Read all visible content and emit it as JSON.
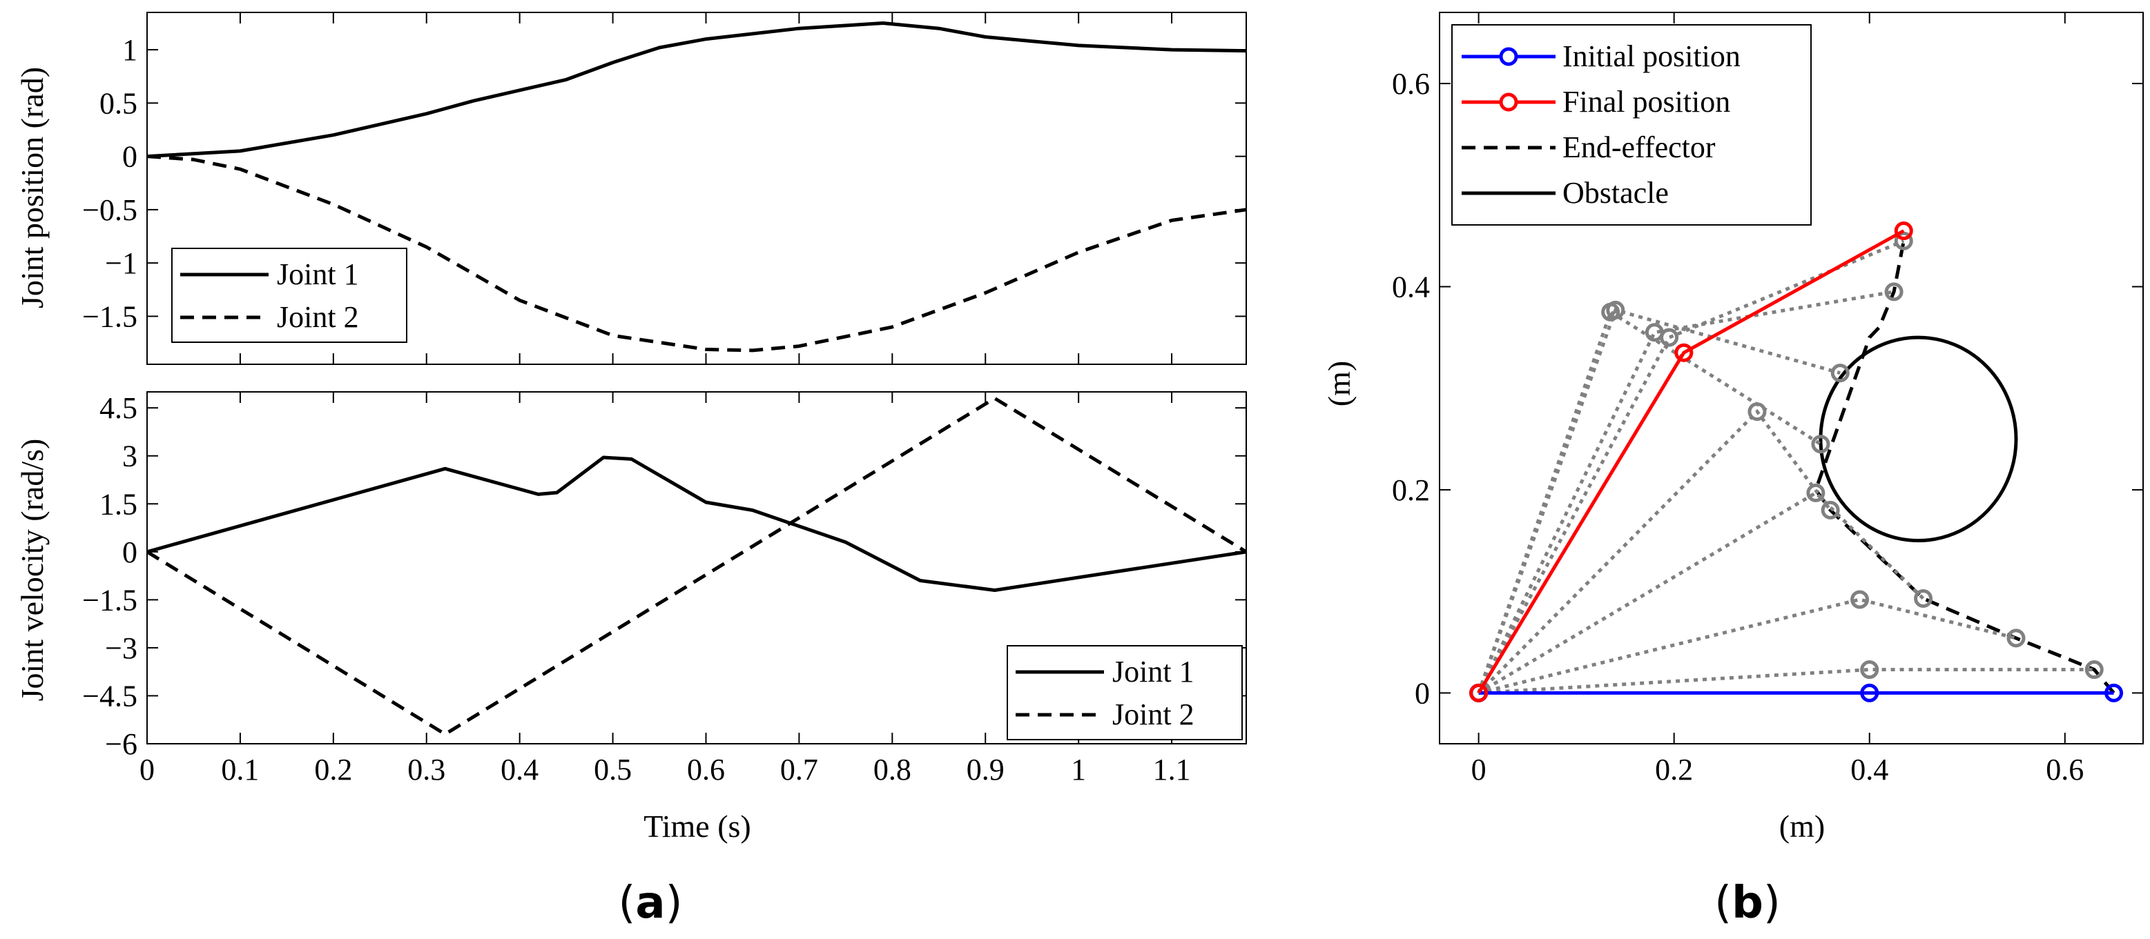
{
  "chart_data": [
    {
      "type": "line",
      "panel": "a-top",
      "title": "",
      "xlabel": "",
      "ylabel": "Joint position (rad)",
      "xlim": [
        0,
        1.18
      ],
      "ylim": [
        -1.95,
        1.35
      ],
      "xticks": [
        0,
        0.1,
        0.2,
        0.3,
        0.4,
        0.5,
        0.6,
        0.7,
        0.8,
        0.9,
        1,
        1.1
      ],
      "yticks": [
        1,
        0.5,
        0,
        -0.5,
        -1,
        -1.5
      ],
      "ytick_labels": [
        "1",
        "0.5",
        "0",
        "−0.5",
        "−1",
        "−1.5"
      ],
      "legend": {
        "placement": "bottom-left",
        "entries": [
          "Joint 1",
          "Joint 2"
        ]
      },
      "series": [
        {
          "name": "Joint 1",
          "style": "solid",
          "color": "#000000",
          "x": [
            0,
            0.1,
            0.2,
            0.3,
            0.35,
            0.4,
            0.45,
            0.5,
            0.55,
            0.6,
            0.7,
            0.79,
            0.85,
            0.9,
            1.0,
            1.1,
            1.18
          ],
          "y": [
            0,
            0.05,
            0.2,
            0.4,
            0.52,
            0.62,
            0.72,
            0.88,
            1.02,
            1.1,
            1.2,
            1.25,
            1.2,
            1.12,
            1.04,
            1.0,
            0.99
          ]
        },
        {
          "name": "Joint 2",
          "style": "dashed",
          "color": "#000000",
          "x": [
            0,
            0.05,
            0.1,
            0.2,
            0.3,
            0.35,
            0.4,
            0.5,
            0.6,
            0.65,
            0.7,
            0.8,
            0.9,
            1.0,
            1.1,
            1.18
          ],
          "y": [
            0,
            -0.03,
            -0.12,
            -0.45,
            -0.85,
            -1.1,
            -1.35,
            -1.68,
            -1.81,
            -1.82,
            -1.78,
            -1.6,
            -1.28,
            -0.9,
            -0.6,
            -0.5
          ]
        }
      ]
    },
    {
      "type": "line",
      "panel": "a-bottom",
      "title": "",
      "xlabel": "Time (s)",
      "ylabel": "Joint velocity (rad/s)",
      "xlim": [
        0,
        1.18
      ],
      "ylim": [
        -6,
        5
      ],
      "xticks": [
        0,
        0.1,
        0.2,
        0.3,
        0.4,
        0.5,
        0.6,
        0.7,
        0.8,
        0.9,
        1,
        1.1
      ],
      "yticks": [
        4.5,
        3,
        1.5,
        0,
        -1.5,
        -3,
        -4.5,
        -6
      ],
      "ytick_labels": [
        "4.5",
        "3",
        "1.5",
        "0",
        "−1.5",
        "−3",
        "−4.5",
        "−6"
      ],
      "legend": {
        "placement": "bottom-right",
        "entries": [
          "Joint 1",
          "Joint 2"
        ]
      },
      "series": [
        {
          "name": "Joint 1",
          "style": "solid",
          "color": "#000000",
          "x": [
            0,
            0.32,
            0.42,
            0.44,
            0.49,
            0.52,
            0.6,
            0.65,
            0.75,
            0.83,
            0.91,
            1.18
          ],
          "y": [
            0,
            2.6,
            1.8,
            1.85,
            2.95,
            2.9,
            1.55,
            1.3,
            0.3,
            -0.9,
            -1.2,
            0
          ]
        },
        {
          "name": "Joint 2",
          "style": "dashed",
          "color": "#000000",
          "x": [
            0,
            0.32,
            0.91,
            1.18
          ],
          "y": [
            0,
            -5.7,
            4.8,
            0
          ]
        }
      ]
    },
    {
      "type": "line",
      "panel": "b",
      "title": "",
      "xlabel": "(m)",
      "ylabel": "(m)",
      "xlim": [
        -0.04,
        0.68
      ],
      "ylim": [
        -0.05,
        0.67
      ],
      "xticks": [
        0,
        0.2,
        0.4,
        0.6
      ],
      "yticks": [
        0,
        0.2,
        0.4,
        0.6
      ],
      "legend": {
        "placement": "top-left",
        "entries": [
          "Initial position",
          "Final position",
          "End-effector",
          "Obstacle"
        ]
      },
      "initial_position": {
        "color": "#0000ff",
        "points": [
          [
            0,
            0
          ],
          [
            0.4,
            0
          ],
          [
            0.65,
            0
          ]
        ]
      },
      "final_position": {
        "color": "#ff0000",
        "points": [
          [
            0,
            0
          ],
          [
            0.21,
            0.335
          ],
          [
            0.435,
            0.455
          ]
        ]
      },
      "intermediate_configurations": [
        [
          [
            0,
            0
          ],
          [
            0.4,
            0.023
          ],
          [
            0.63,
            0.023
          ]
        ],
        [
          [
            0,
            0
          ],
          [
            0.39,
            0.092
          ],
          [
            0.55,
            0.054
          ]
        ],
        [
          [
            0,
            0
          ],
          [
            0.345,
            0.197
          ],
          [
            0.455,
            0.093
          ]
        ],
        [
          [
            0,
            0
          ],
          [
            0.285,
            0.277
          ],
          [
            0.36,
            0.18
          ]
        ],
        [
          [
            0,
            0
          ],
          [
            0.135,
            0.375
          ],
          [
            0.35,
            0.245
          ]
        ],
        [
          [
            0,
            0
          ],
          [
            0.14,
            0.377
          ],
          [
            0.37,
            0.315
          ]
        ],
        [
          [
            0,
            0
          ],
          [
            0.18,
            0.355
          ],
          [
            0.425,
            0.395
          ]
        ],
        [
          [
            0,
            0
          ],
          [
            0.195,
            0.35
          ],
          [
            0.435,
            0.445
          ]
        ]
      ],
      "end_effector_path": {
        "x": [
          0.65,
          0.63,
          0.55,
          0.455,
          0.36,
          0.345,
          0.4,
          0.41,
          0.425,
          0.435
        ],
        "y": [
          0.0,
          0.023,
          0.054,
          0.093,
          0.18,
          0.2,
          0.35,
          0.36,
          0.395,
          0.445
        ]
      },
      "obstacle": {
        "center": [
          0.45,
          0.25
        ],
        "radius": 0.1
      },
      "gray_color": "#808080"
    }
  ],
  "captions": {
    "a": {
      "open": "(",
      "letter": "a",
      "close": ")"
    },
    "b": {
      "open": "(",
      "letter": "b",
      "close": ")"
    }
  }
}
